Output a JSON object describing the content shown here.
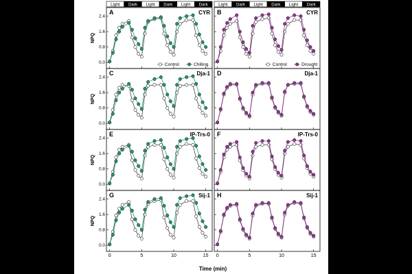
{
  "figure": {
    "x_axis_label": "Time (min)",
    "y_axis_label": "NPQ",
    "light_bar": [
      "Light",
      "Dark",
      "Light",
      "Dark",
      "Light",
      "Dark"
    ],
    "colors": {
      "control": "#aaaaaa",
      "chilling": "#1a9a70",
      "drought": "#9b2f9b"
    }
  },
  "chart_data": {
    "type": "line",
    "x_ticks": [
      0,
      5,
      10,
      15
    ],
    "y_ticks": [
      0.0,
      0.8,
      1.6,
      2.4
    ],
    "xlim": [
      -0.5,
      16
    ],
    "ylim": [
      -0.1,
      2.6
    ],
    "times": [
      0,
      0.5,
      1,
      1.5,
      2,
      3,
      3.5,
      4,
      4.5,
      5,
      5.5,
      6,
      7,
      8,
      8.5,
      9,
      9.5,
      10,
      10.5,
      11,
      12,
      13,
      13.5,
      14,
      14.5,
      15
    ],
    "legends": [
      {
        "panel": "A",
        "entries": [
          "Control",
          "Chilling"
        ]
      },
      {
        "panel": "B",
        "entries": [
          "Control",
          "Drought"
        ]
      }
    ],
    "panels": [
      {
        "letter": "A",
        "genotype": "CYR",
        "treatment": "chilling",
        "control": [
          0.05,
          0.6,
          1.4,
          1.8,
          2.0,
          2.15,
          1.3,
          0.8,
          0.45,
          0.3,
          1.5,
          2.1,
          2.25,
          2.3,
          1.5,
          0.9,
          0.55,
          0.4,
          1.6,
          2.0,
          2.2,
          2.2,
          1.4,
          0.9,
          0.6,
          0.45
        ],
        "treatment_values": [
          0.05,
          0.5,
          1.2,
          1.6,
          1.85,
          2.05,
          1.7,
          1.25,
          0.95,
          0.7,
          1.8,
          2.15,
          2.3,
          2.35,
          1.9,
          1.35,
          1.0,
          0.8,
          2.0,
          2.3,
          2.4,
          2.45,
          2.0,
          1.45,
          1.05,
          0.8
        ]
      },
      {
        "letter": "B",
        "genotype": "CYR",
        "treatment": "drought",
        "control": [
          0.05,
          0.6,
          1.4,
          1.8,
          2.0,
          2.15,
          1.3,
          0.8,
          0.45,
          0.3,
          1.5,
          2.1,
          2.25,
          2.3,
          1.5,
          0.9,
          0.55,
          0.4,
          1.6,
          2.0,
          2.2,
          2.2,
          1.4,
          0.9,
          0.6,
          0.45
        ],
        "treatment_values": [
          0.05,
          0.8,
          1.7,
          2.05,
          2.25,
          2.45,
          1.6,
          1.05,
          0.7,
          0.5,
          1.9,
          2.3,
          2.45,
          2.5,
          1.8,
          1.2,
          0.85,
          0.65,
          2.0,
          2.3,
          2.45,
          2.4,
          1.7,
          1.15,
          0.8,
          0.6
        ]
      },
      {
        "letter": "C",
        "genotype": "Dja-1",
        "treatment": "chilling",
        "control": [
          0.05,
          0.7,
          1.5,
          1.85,
          2.0,
          1.95,
          1.2,
          0.7,
          0.45,
          0.3,
          1.5,
          1.95,
          2.0,
          2.0,
          1.3,
          0.8,
          0.5,
          0.35,
          1.6,
          1.95,
          2.0,
          2.0,
          1.3,
          0.85,
          0.55,
          0.4
        ],
        "treatment_values": [
          0.05,
          0.5,
          1.2,
          1.6,
          1.8,
          2.05,
          1.75,
          1.3,
          1.0,
          0.75,
          1.8,
          2.15,
          2.3,
          2.4,
          2.0,
          1.5,
          1.15,
          0.9,
          2.0,
          2.3,
          2.4,
          2.45,
          2.05,
          1.5,
          1.1,
          0.8
        ]
      },
      {
        "letter": "D",
        "genotype": "Dja-1",
        "treatment": "drought",
        "control": [
          0.05,
          0.7,
          1.5,
          1.85,
          2.0,
          2.0,
          1.25,
          0.75,
          0.5,
          0.35,
          1.5,
          1.95,
          2.05,
          2.05,
          1.3,
          0.8,
          0.55,
          0.4,
          1.6,
          2.0,
          2.05,
          2.05,
          1.35,
          0.85,
          0.6,
          0.45
        ],
        "treatment_values": [
          0.05,
          0.75,
          1.55,
          1.9,
          2.05,
          2.05,
          1.3,
          0.8,
          0.55,
          0.4,
          1.6,
          2.0,
          2.1,
          2.1,
          1.35,
          0.85,
          0.6,
          0.45,
          1.65,
          2.0,
          2.1,
          2.1,
          1.4,
          0.9,
          0.65,
          0.5
        ]
      },
      {
        "letter": "E",
        "genotype": "IP-Trs-0",
        "treatment": "chilling",
        "control": [
          0.05,
          0.65,
          1.4,
          1.8,
          1.95,
          2.05,
          1.25,
          0.75,
          0.45,
          0.3,
          1.5,
          1.95,
          2.05,
          2.05,
          1.3,
          0.8,
          0.5,
          0.35,
          1.6,
          1.95,
          2.1,
          2.05,
          1.35,
          0.85,
          0.55,
          0.4
        ],
        "treatment_values": [
          0.05,
          0.5,
          1.2,
          1.6,
          1.8,
          2.0,
          1.7,
          1.25,
          0.95,
          0.7,
          1.75,
          2.1,
          2.25,
          2.3,
          1.9,
          1.4,
          1.05,
          0.8,
          1.95,
          2.25,
          2.35,
          2.4,
          2.0,
          1.45,
          1.05,
          0.75
        ]
      },
      {
        "letter": "F",
        "genotype": "IP-Trs-0",
        "treatment": "drought",
        "control": [
          0.05,
          0.65,
          1.4,
          1.8,
          1.95,
          2.05,
          1.25,
          0.75,
          0.45,
          0.3,
          1.5,
          1.95,
          2.05,
          2.05,
          1.3,
          0.8,
          0.5,
          0.35,
          1.6,
          1.95,
          2.1,
          2.05,
          1.35,
          0.85,
          0.55,
          0.4
        ],
        "treatment_values": [
          0.05,
          0.75,
          1.55,
          1.95,
          2.1,
          2.2,
          1.4,
          0.85,
          0.55,
          0.4,
          1.7,
          2.15,
          2.25,
          2.25,
          1.45,
          0.9,
          0.6,
          0.45,
          1.75,
          2.2,
          2.3,
          2.25,
          1.5,
          0.95,
          0.65,
          0.5
        ]
      },
      {
        "letter": "G",
        "genotype": "Sij-1",
        "treatment": "chilling",
        "control": [
          0.05,
          0.7,
          1.55,
          1.9,
          2.1,
          2.25,
          1.35,
          0.8,
          0.5,
          0.35,
          1.6,
          2.15,
          2.3,
          2.35,
          1.45,
          0.9,
          0.55,
          0.4,
          1.7,
          2.1,
          2.3,
          2.3,
          1.5,
          0.95,
          0.65,
          0.45
        ],
        "treatment_values": [
          0.05,
          0.55,
          1.3,
          1.7,
          1.9,
          2.1,
          1.8,
          1.35,
          1.05,
          0.8,
          1.85,
          2.25,
          2.4,
          2.45,
          2.05,
          1.55,
          1.2,
          0.95,
          2.1,
          2.45,
          2.55,
          2.6,
          2.2,
          1.65,
          1.25,
          0.95
        ]
      },
      {
        "letter": "H",
        "genotype": "Sij-1",
        "treatment": "drought",
        "control": [
          0.05,
          0.7,
          1.55,
          1.9,
          2.05,
          2.1,
          1.3,
          0.8,
          0.5,
          0.35,
          1.55,
          2.05,
          2.15,
          2.15,
          1.4,
          0.85,
          0.55,
          0.4,
          1.6,
          2.05,
          2.2,
          2.15,
          1.4,
          0.9,
          0.6,
          0.45
        ],
        "treatment_values": [
          0.05,
          0.75,
          1.6,
          1.95,
          2.1,
          2.15,
          1.35,
          0.85,
          0.55,
          0.4,
          1.65,
          2.1,
          2.2,
          2.2,
          1.45,
          0.9,
          0.6,
          0.45,
          1.7,
          2.1,
          2.25,
          2.2,
          1.45,
          0.95,
          0.65,
          0.5
        ]
      }
    ]
  }
}
